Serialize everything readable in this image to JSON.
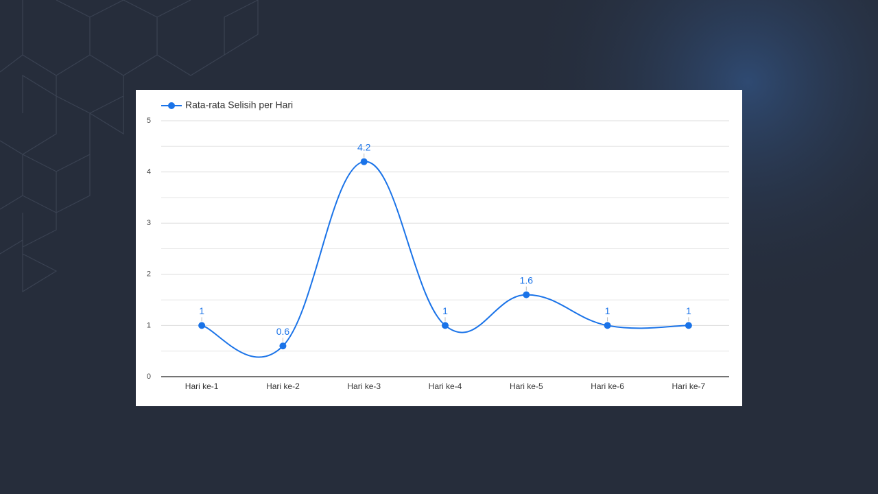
{
  "chart_data": {
    "type": "line",
    "categories": [
      "Hari ke-1",
      "Hari ke-2",
      "Hari ke-3",
      "Hari ke-4",
      "Hari ke-5",
      "Hari ke-6",
      "Hari ke-7"
    ],
    "series": [
      {
        "name": "Rata-rata Selisih per Hari",
        "color": "#1a73e8",
        "values": [
          1,
          0.6,
          4.2,
          1,
          1.6,
          1,
          1
        ]
      }
    ],
    "ylim": [
      0,
      5
    ],
    "yticks": [
      0,
      1,
      2,
      3,
      4,
      5
    ],
    "grid": true,
    "minor_grid": true,
    "data_labels": true,
    "smooth": true,
    "legend": "top-left"
  }
}
